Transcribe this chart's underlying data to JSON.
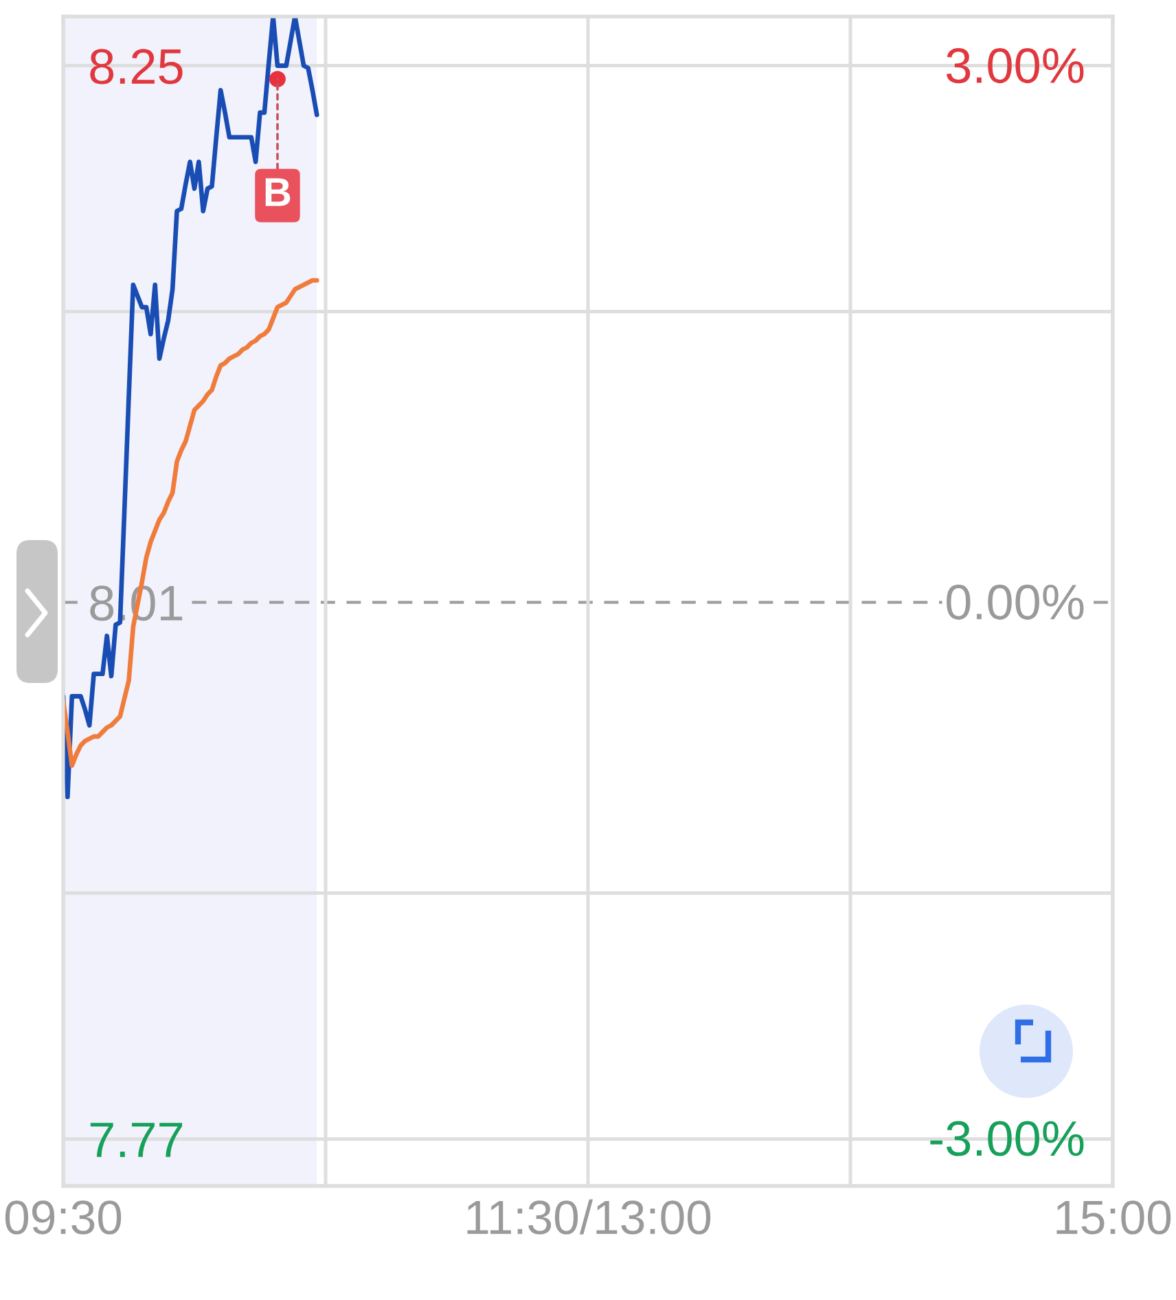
{
  "chart_data": {
    "type": "line",
    "categories": [
      "09:30",
      null,
      null,
      null,
      null,
      null,
      null,
      null,
      null,
      null,
      null,
      null,
      null,
      null,
      null,
      null,
      null,
      null,
      null,
      null,
      null,
      null,
      null,
      null,
      null,
      null,
      null,
      null,
      null,
      null,
      null,
      null,
      null,
      null,
      null,
      null,
      null,
      null,
      null,
      null,
      null,
      null,
      null,
      null,
      null,
      null,
      null,
      null,
      null,
      null,
      null,
      null,
      null,
      null,
      null,
      null,
      null,
      null,
      null,
      null,
      null,
      null,
      null,
      null,
      null,
      null,
      null,
      null,
      null,
      null,
      null,
      null,
      null,
      null,
      null,
      null,
      null,
      null,
      null,
      null,
      null,
      null,
      null,
      null,
      null,
      null,
      null,
      null,
      null,
      null,
      null,
      null,
      null,
      null,
      null,
      null,
      null,
      null,
      null,
      null,
      null,
      null,
      null,
      null,
      null,
      null,
      null,
      null,
      null,
      null,
      null,
      null,
      null,
      null,
      null,
      null,
      null,
      null,
      null,
      null,
      "11:30/13:00",
      null,
      null,
      null,
      null,
      null,
      null,
      null,
      null,
      null,
      null,
      null,
      null,
      null,
      null,
      null,
      null,
      null,
      null,
      null,
      null,
      null,
      null,
      null,
      null,
      null,
      null,
      null,
      null,
      null,
      null,
      null,
      null,
      null,
      null,
      null,
      null,
      null,
      null,
      null,
      null,
      null,
      null,
      null,
      null,
      null,
      null,
      null,
      null,
      null,
      null,
      null,
      null,
      null,
      null,
      null,
      null,
      null,
      null,
      null,
      null,
      null,
      null,
      null,
      null,
      null,
      null,
      null,
      null,
      null,
      null,
      null,
      null,
      null,
      null,
      null,
      null,
      null,
      null,
      null,
      null,
      null,
      null,
      null,
      null,
      null,
      null,
      null,
      null,
      null,
      null,
      null,
      null,
      null,
      null,
      null,
      null,
      null,
      null,
      null,
      null,
      null,
      null,
      null,
      null,
      null,
      null,
      null,
      null,
      null,
      null,
      null,
      null,
      null,
      null,
      null,
      null,
      null,
      null,
      null,
      "15:00"
    ],
    "series": [
      {
        "color": "#1a4db3",
        "values": [
          7.968,
          7.923,
          7.968,
          7.968,
          7.968,
          7.962,
          7.955,
          7.978,
          7.978,
          7.978,
          7.995,
          7.977,
          8.0,
          8.001,
          8.051,
          8.102,
          8.152,
          8.147,
          8.142,
          8.142,
          8.13,
          8.152,
          8.119,
          8.128,
          8.136,
          8.15,
          8.185,
          8.186,
          8.197,
          8.207,
          8.195,
          8.207,
          8.185,
          8.195,
          8.196,
          8.218,
          8.239,
          8.229,
          8.218,
          8.218,
          8.218,
          8.218,
          8.218,
          8.218,
          8.207,
          8.229,
          8.229,
          8.251,
          8.272,
          8.25,
          8.25,
          8.25,
          8.261,
          8.272,
          8.261,
          8.25,
          8.249,
          8.239,
          8.228,
          null,
          null,
          null,
          null,
          null,
          null,
          null,
          null,
          null,
          null,
          null,
          null,
          null,
          null,
          null,
          null,
          null,
          null,
          null,
          null,
          null,
          null,
          null,
          null,
          null,
          null,
          null,
          null,
          null,
          null,
          null,
          null,
          null,
          null,
          null,
          null,
          null,
          null,
          null,
          null,
          null,
          null,
          null,
          null,
          null,
          null,
          null,
          null,
          null,
          null,
          null,
          null,
          null,
          null,
          null,
          null,
          null,
          null,
          null,
          null,
          null,
          null,
          null,
          null,
          null,
          null,
          null,
          null,
          null,
          null,
          null,
          null,
          null,
          null,
          null,
          null,
          null,
          null,
          null,
          null,
          null,
          null,
          null,
          null,
          null,
          null,
          null,
          null,
          null,
          null,
          null,
          null,
          null,
          null,
          null,
          null,
          null,
          null,
          null,
          null,
          null,
          null,
          null,
          null,
          null,
          null,
          null,
          null,
          null,
          null,
          null,
          null,
          null,
          null,
          null,
          null,
          null,
          null,
          null,
          null,
          null,
          null,
          null,
          null,
          null,
          null,
          null,
          null,
          null,
          null,
          null,
          null,
          null,
          null,
          null,
          null,
          null,
          null,
          null,
          null,
          null,
          null,
          null,
          null,
          null,
          null,
          null,
          null,
          null,
          null,
          null,
          null,
          null,
          null,
          null,
          null,
          null,
          null,
          null,
          null,
          null,
          null,
          null,
          null,
          null,
          null,
          null,
          null,
          null,
          null,
          null,
          null,
          null,
          null,
          null,
          null,
          null,
          null,
          null,
          null,
          null,
          null
        ]
      },
      {
        "color": "#f07c3c",
        "values": [
          7.966,
          7.952,
          7.937,
          7.942,
          7.946,
          7.948,
          7.949,
          7.95,
          7.95,
          7.952,
          7.954,
          7.955,
          7.957,
          7.959,
          7.967,
          7.975,
          7.999,
          8.009,
          8.019,
          8.03,
          8.037,
          8.042,
          8.047,
          8.05,
          8.055,
          8.059,
          8.073,
          8.078,
          8.082,
          8.089,
          8.096,
          8.098,
          8.1,
          8.103,
          8.105,
          8.111,
          8.116,
          8.117,
          8.119,
          8.12,
          8.121,
          8.123,
          8.124,
          8.126,
          8.127,
          8.129,
          8.13,
          8.132,
          8.137,
          8.142,
          8.143,
          8.144,
          8.147,
          8.15,
          8.151,
          8.152,
          8.153,
          8.154,
          8.154,
          null,
          null,
          null,
          null,
          null,
          null,
          null,
          null,
          null,
          null,
          null,
          null,
          null,
          null,
          null,
          null,
          null,
          null,
          null,
          null,
          null,
          null,
          null,
          null,
          null,
          null,
          null,
          null,
          null,
          null,
          null,
          null,
          null,
          null,
          null,
          null,
          null,
          null,
          null,
          null,
          null,
          null,
          null,
          null,
          null,
          null,
          null,
          null,
          null,
          null,
          null,
          null,
          null,
          null,
          null,
          null,
          null,
          null,
          null,
          null,
          null,
          null,
          null,
          null,
          null,
          null,
          null,
          null,
          null,
          null,
          null,
          null,
          null,
          null,
          null,
          null,
          null,
          null,
          null,
          null,
          null,
          null,
          null,
          null,
          null,
          null,
          null,
          null,
          null,
          null,
          null,
          null,
          null,
          null,
          null,
          null,
          null,
          null,
          null,
          null,
          null,
          null,
          null,
          null,
          null,
          null,
          null,
          null,
          null,
          null,
          null,
          null,
          null,
          null,
          null,
          null,
          null,
          null,
          null,
          null,
          null,
          null,
          null,
          null,
          null,
          null,
          null,
          null,
          null,
          null,
          null,
          null,
          null,
          null,
          null,
          null,
          null,
          null,
          null,
          null,
          null,
          null,
          null,
          null,
          null,
          null,
          null,
          null,
          null,
          null,
          null,
          null,
          null,
          null,
          null,
          null,
          null,
          null,
          null,
          null,
          null,
          null,
          null,
          null,
          null,
          null,
          null,
          null,
          null,
          null,
          null,
          null,
          null,
          null,
          null,
          null,
          null,
          null,
          null,
          null,
          null,
          null
        ]
      },
      {
        "type": "scatter",
        "color": "#e8303f",
        "values": [
          null,
          null,
          null,
          null,
          null,
          null,
          null,
          null,
          null,
          null,
          null,
          null,
          null,
          null,
          null,
          null,
          null,
          null,
          null,
          null,
          null,
          null,
          null,
          null,
          null,
          null,
          null,
          null,
          null,
          null,
          null,
          null,
          null,
          null,
          null,
          null,
          null,
          null,
          null,
          null,
          null,
          null,
          null,
          null,
          null,
          null,
          null,
          null,
          null,
          8.244,
          null,
          null,
          null,
          null,
          null,
          null,
          null,
          null,
          null,
          null,
          null,
          null,
          null,
          null,
          null,
          null,
          null,
          null,
          null,
          null,
          null,
          null,
          null,
          null,
          null,
          null,
          null,
          null,
          null,
          null,
          null,
          null,
          null,
          null,
          null,
          null,
          null,
          null,
          null,
          null,
          null,
          null,
          null,
          null,
          null,
          null,
          null,
          null,
          null,
          null,
          null,
          null,
          null,
          null,
          null,
          null,
          null,
          null,
          null,
          null,
          null,
          null,
          null,
          null,
          null,
          null,
          null,
          null,
          null,
          null,
          null,
          null,
          null,
          null,
          null,
          null,
          null,
          null,
          null,
          null,
          null,
          null,
          null,
          null,
          null,
          null,
          null,
          null,
          null,
          null,
          null,
          null,
          null,
          null,
          null,
          null,
          null,
          null,
          null,
          null,
          null,
          null,
          null,
          null,
          null,
          null,
          null,
          null,
          null,
          null,
          null,
          null,
          null,
          null,
          null,
          null,
          null,
          null,
          null,
          null,
          null,
          null,
          null,
          null,
          null,
          null,
          null,
          null,
          null,
          null,
          null,
          null,
          null,
          null,
          null,
          null,
          null,
          null,
          null,
          null,
          null,
          null,
          null,
          null,
          null,
          null,
          null,
          null,
          null,
          null,
          null,
          null,
          null,
          null,
          null,
          null,
          null,
          null,
          null,
          null,
          null,
          null,
          null,
          null,
          null,
          null,
          null,
          null,
          null,
          null,
          null,
          null,
          null,
          null,
          null,
          null,
          null,
          null,
          null,
          null,
          null,
          null,
          null,
          null,
          null,
          null,
          null,
          null,
          null,
          null,
          null
        ],
        "value_labels": [
          null,
          null,
          null,
          null,
          null,
          null,
          null,
          null,
          null,
          null,
          null,
          null,
          null,
          null,
          null,
          null,
          null,
          null,
          null,
          null,
          null,
          null,
          null,
          null,
          null,
          null,
          null,
          null,
          null,
          null,
          null,
          null,
          null,
          null,
          null,
          null,
          null,
          null,
          null,
          null,
          null,
          null,
          null,
          null,
          null,
          null,
          null,
          null,
          null,
          "B",
          null,
          null,
          null,
          null,
          null,
          null,
          null,
          null,
          null,
          null,
          null,
          null,
          null,
          null,
          null,
          null,
          null,
          null,
          null,
          null,
          null,
          null,
          null,
          null,
          null,
          null,
          null,
          null,
          null,
          null,
          null,
          null,
          null,
          null,
          null,
          null,
          null,
          null,
          null,
          null,
          null,
          null,
          null,
          null,
          null,
          null,
          null,
          null,
          null,
          null,
          null,
          null,
          null,
          null,
          null,
          null,
          null,
          null,
          null,
          null,
          null,
          null,
          null,
          null,
          null,
          null,
          null,
          null,
          null,
          null,
          null,
          null,
          null,
          null,
          null,
          null,
          null,
          null,
          null,
          null,
          null,
          null,
          null,
          null,
          null,
          null,
          null,
          null,
          null,
          null,
          null,
          null,
          null,
          null,
          null,
          null,
          null,
          null,
          null,
          null,
          null,
          null,
          null,
          null,
          null,
          null,
          null,
          null,
          null,
          null,
          null,
          null,
          null,
          null,
          null,
          null,
          null,
          null,
          null,
          null,
          null,
          null,
          null,
          null,
          null,
          null,
          null,
          null,
          null,
          null,
          null,
          null,
          null,
          null,
          null,
          null,
          null,
          null,
          null,
          null,
          null,
          null,
          null,
          null,
          null,
          null,
          null,
          null,
          null,
          null,
          null,
          null,
          null,
          null,
          null,
          null,
          null,
          null,
          null,
          null,
          null,
          null,
          null,
          null,
          null,
          null,
          null,
          null,
          null,
          null,
          null,
          null,
          null,
          null,
          null,
          null,
          null,
          null,
          null,
          null,
          null,
          null,
          null,
          null,
          null,
          null,
          null,
          null,
          null,
          null,
          null
        ]
      }
    ],
    "ylim": [
      7.749,
      8.272
    ],
    "yticks": [
      7.77,
      {
        "value": 7.88,
        "label": null
      },
      8.01,
      {
        "value": 8.14,
        "label": null
      },
      8.25
    ],
    "y2lim": [
      -3.27,
      3.27
    ],
    "y2ticks": [
      {
        "value": -3,
        "label": "-3.00%"
      },
      {
        "value": 0,
        "label": "0.00%"
      },
      {
        "value": 3,
        "label": "3.00%"
      }
    ],
    "ref_lines": [
      {
        "axis": "y",
        "value": 8.01,
        "color": "#9e9e9e",
        "line_style": "dashed"
      }
    ],
    "grid": true,
    "line_style": "solid"
  }
}
